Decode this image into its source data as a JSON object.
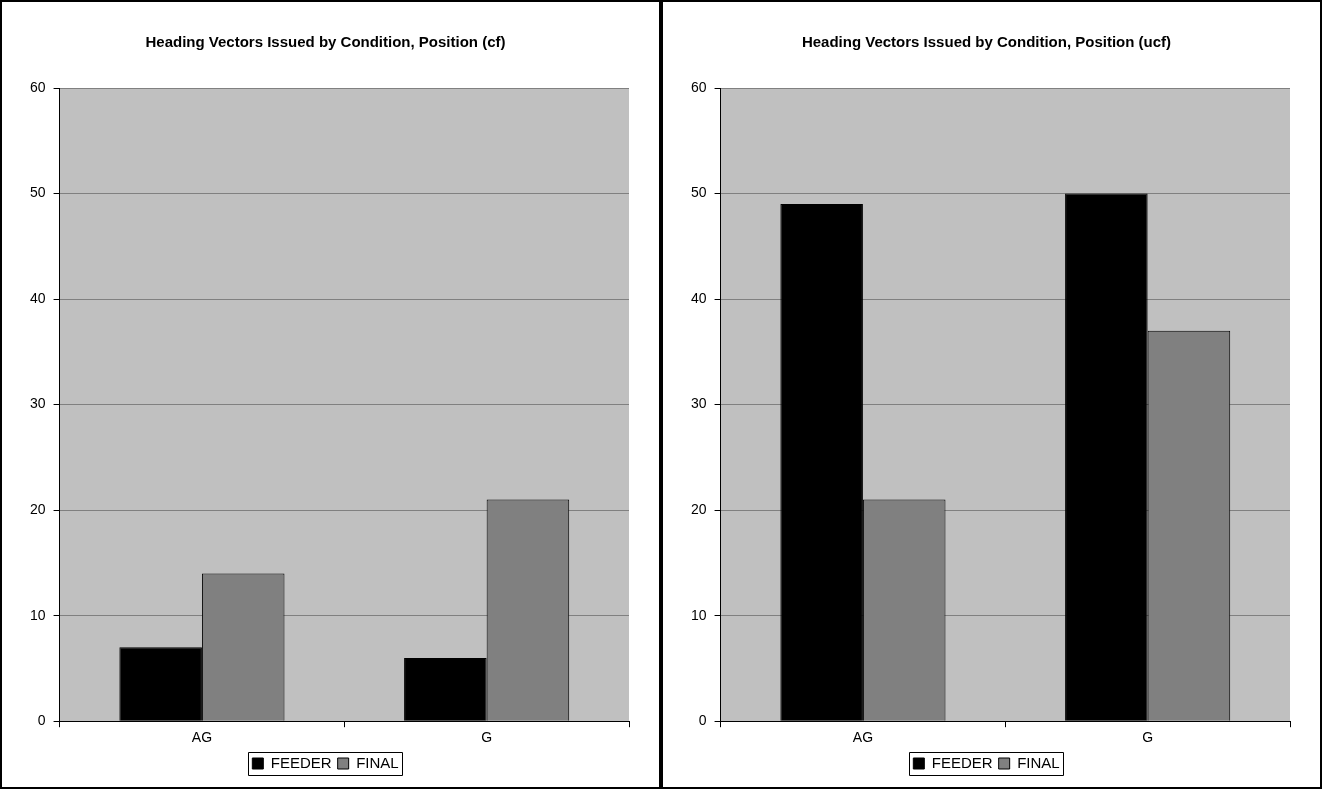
{
  "chart_data": [
    {
      "type": "bar",
      "title": "Heading Vectors Issued by Condition, Position (cf)",
      "categories": [
        "AG",
        "G"
      ],
      "series": [
        {
          "name": "FEEDER",
          "color": "#000000",
          "values": [
            7,
            6
          ]
        },
        {
          "name": "FINAL",
          "color": "#808080",
          "values": [
            14,
            21
          ]
        }
      ],
      "ylim": [
        0,
        60
      ],
      "yticks": [
        0,
        10,
        20,
        30,
        40,
        50,
        60
      ],
      "grid": "y",
      "legend": "bottom"
    },
    {
      "type": "bar",
      "title": "Heading Vectors Issued by Condition, Position (ucf)",
      "categories": [
        "AG",
        "G"
      ],
      "series": [
        {
          "name": "FEEDER",
          "color": "#000000",
          "values": [
            49,
            50
          ]
        },
        {
          "name": "FINAL",
          "color": "#808080",
          "values": [
            21,
            37
          ]
        }
      ],
      "ylim": [
        0,
        60
      ],
      "yticks": [
        0,
        10,
        20,
        30,
        40,
        50,
        60
      ],
      "grid": "y",
      "legend": "bottom"
    }
  ]
}
